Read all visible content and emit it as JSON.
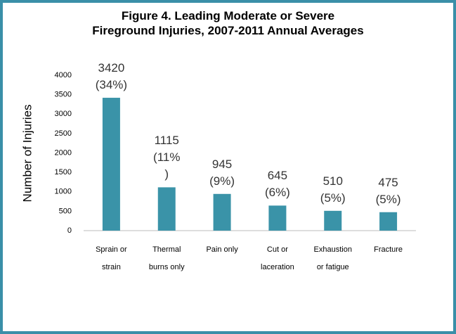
{
  "chart_data": {
    "type": "bar",
    "title": "Figure 4. Leading Moderate or Severe\nFireground Injuries, 2007-2011 Annual Averages",
    "y_label": "Number of Injuries",
    "categories": [
      "Sprain or\nstrain",
      "Thermal\nburns only",
      "Pain only",
      "Cut or\nlaceration",
      "Exhaustion\nor fatigue",
      "Fracture"
    ],
    "values": [
      3420,
      1115,
      945,
      645,
      510,
      475
    ],
    "value_labels": [
      "3420\n(34%)",
      "1115\n(11%\n)",
      "945\n(9%)",
      "645\n(6%)",
      "510\n(5%)",
      "475\n(5%)"
    ],
    "color": "#3a93a8",
    "ylim": [
      0,
      4000
    ],
    "yticks": [
      0,
      500,
      1000,
      1500,
      2000,
      2500,
      3000,
      3500,
      4000
    ],
    "grid": false
  }
}
